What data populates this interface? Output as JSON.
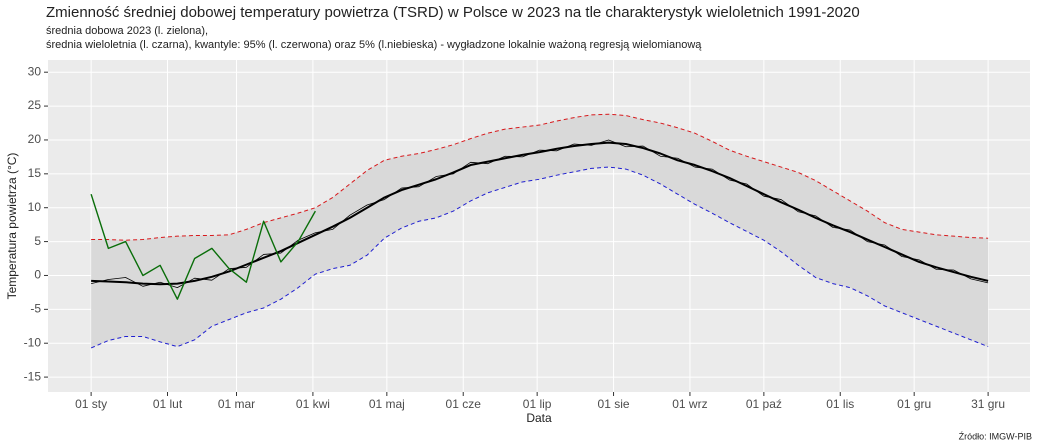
{
  "chart_data": {
    "type": "line",
    "title": "Zmienność średniej dobowej temperatury powietrza (TSRD) w Polsce w 2023 na tle charakterystyk wieloletnich 1991-2020",
    "subtitle": [
      "średnia dobowa 2023 (l. zielona),",
      "średnia wieloletnia (l. czarna), kwantyle: 95% (l. czerwona) oraz 5% (l.niebieska) - wygładzone lokalnie ważoną regresją wielomianową"
    ],
    "x_label": "Data",
    "y_label": "Temperatura powietrza (°C)",
    "source": "Źródło: IMGW-PIB",
    "grid": true,
    "band_color": "#d9d9d9",
    "xlim": [
      -16.5,
      382
    ],
    "ylim": [
      -17.2,
      31.8
    ],
    "xticks": [
      {
        "value": 1,
        "label": "01 sty"
      },
      {
        "value": 32,
        "label": "01 lut"
      },
      {
        "value": 60,
        "label": "01 mar"
      },
      {
        "value": 91,
        "label": "01 kwi"
      },
      {
        "value": 121,
        "label": "01 maj"
      },
      {
        "value": 152,
        "label": "01 cze"
      },
      {
        "value": 182,
        "label": "01 lip"
      },
      {
        "value": 213,
        "label": "01 sie"
      },
      {
        "value": 244,
        "label": "01 wrz"
      },
      {
        "value": 274,
        "label": "01 paź"
      },
      {
        "value": 305,
        "label": "01 lis"
      },
      {
        "value": 335,
        "label": "01 gru"
      },
      {
        "value": 365,
        "label": "31 gru"
      }
    ],
    "yticks": [
      -15,
      -10,
      -5,
      0,
      5,
      10,
      15,
      20,
      25,
      30
    ],
    "x": [
      1,
      8,
      15,
      22,
      29,
      36,
      43,
      50,
      57,
      64,
      71,
      78,
      85,
      92,
      99,
      106,
      113,
      120,
      127,
      134,
      141,
      148,
      155,
      162,
      169,
      176,
      183,
      190,
      197,
      204,
      211,
      218,
      225,
      232,
      239,
      246,
      253,
      260,
      267,
      274,
      281,
      288,
      295,
      302,
      309,
      316,
      323,
      330,
      337,
      344,
      351,
      358,
      365
    ],
    "band": [
      2,
      3
    ],
    "series": [
      {
        "color": "#000000",
        "width": 0.8,
        "dash": false,
        "values": [
          -1.2,
          -0.6,
          -0.3,
          -1.6,
          -1.0,
          -1.8,
          -0.4,
          -0.7,
          1.0,
          1.2,
          3.1,
          3.3,
          5.2,
          6.3,
          6.8,
          8.9,
          10.4,
          11.2,
          12.9,
          13.1,
          14.6,
          15.0,
          16.7,
          16.5,
          17.6,
          17.5,
          18.5,
          18.4,
          19.4,
          19.2,
          20.0,
          19.0,
          19.1,
          17.6,
          17.3,
          16.0,
          15.7,
          14.1,
          13.5,
          11.7,
          11.2,
          9.4,
          8.8,
          7.1,
          6.7,
          5.0,
          4.5,
          2.8,
          2.3,
          0.9,
          0.8,
          -0.5,
          -1.1
        ]
      },
      {
        "color": "#000000",
        "width": 2,
        "dash": false,
        "values": [
          -0.8,
          -0.9,
          -1.0,
          -1.2,
          -1.3,
          -1.2,
          -0.8,
          -0.2,
          0.6,
          1.6,
          2.6,
          3.6,
          4.8,
          6.0,
          7.2,
          8.5,
          10.0,
          11.5,
          12.6,
          13.4,
          14.2,
          15.2,
          16.3,
          16.8,
          17.3,
          17.8,
          18.2,
          18.7,
          19.1,
          19.4,
          19.6,
          19.4,
          18.8,
          18.0,
          17.0,
          16.3,
          15.4,
          14.4,
          13.2,
          12.0,
          10.8,
          9.7,
          8.5,
          7.4,
          6.4,
          5.3,
          4.2,
          3.1,
          2.0,
          1.2,
          0.5,
          -0.2,
          -0.8
        ]
      },
      {
        "color": "#d7191c",
        "width": 1,
        "dash": true,
        "values": [
          5.3,
          5.3,
          5.2,
          5.3,
          5.6,
          5.8,
          5.9,
          5.9,
          6.0,
          6.8,
          7.8,
          8.5,
          9.2,
          10.0,
          11.5,
          13.5,
          15.5,
          17.0,
          17.6,
          18.0,
          18.6,
          19.3,
          20.2,
          21.0,
          21.6,
          21.9,
          22.2,
          22.8,
          23.3,
          23.7,
          23.8,
          23.6,
          23.0,
          22.5,
          21.8,
          21.0,
          19.8,
          18.5,
          17.6,
          16.8,
          16.0,
          15.2,
          14.0,
          12.5,
          11.0,
          9.5,
          7.8,
          6.8,
          6.4,
          6.0,
          5.8,
          5.6,
          5.5
        ]
      },
      {
        "color": "#1f1fd0",
        "width": 1,
        "dash": true,
        "values": [
          -10.7,
          -9.6,
          -9.0,
          -9.0,
          -9.8,
          -10.5,
          -9.5,
          -7.5,
          -6.5,
          -5.5,
          -4.8,
          -3.5,
          -1.8,
          0.2,
          1.0,
          1.5,
          3.0,
          5.5,
          7.0,
          8.0,
          8.5,
          9.5,
          11.0,
          12.2,
          13.0,
          13.8,
          14.2,
          14.8,
          15.3,
          15.8,
          16.0,
          15.7,
          14.8,
          13.5,
          12.0,
          10.5,
          9.2,
          7.8,
          6.5,
          5.2,
          3.5,
          1.5,
          -0.3,
          -1.2,
          -1.8,
          -3.0,
          -4.5,
          -5.5,
          -6.5,
          -7.5,
          -8.5,
          -9.5,
          -10.5
        ]
      },
      {
        "color": "#0a6e0a",
        "width": 1.4,
        "dash": false,
        "values": [
          12,
          4,
          5,
          0,
          1.5,
          -3.5,
          2.5,
          4,
          1,
          -1,
          8,
          2,
          5,
          9.5,
          null,
          null,
          null,
          null,
          null,
          null,
          null,
          null,
          null,
          null,
          null,
          null,
          null,
          null,
          null,
          null,
          null,
          null,
          null,
          null,
          null,
          null,
          null,
          null,
          null,
          null,
          null,
          null,
          null,
          null,
          null,
          null,
          null,
          null,
          null,
          null,
          null,
          null,
          null
        ]
      }
    ]
  }
}
